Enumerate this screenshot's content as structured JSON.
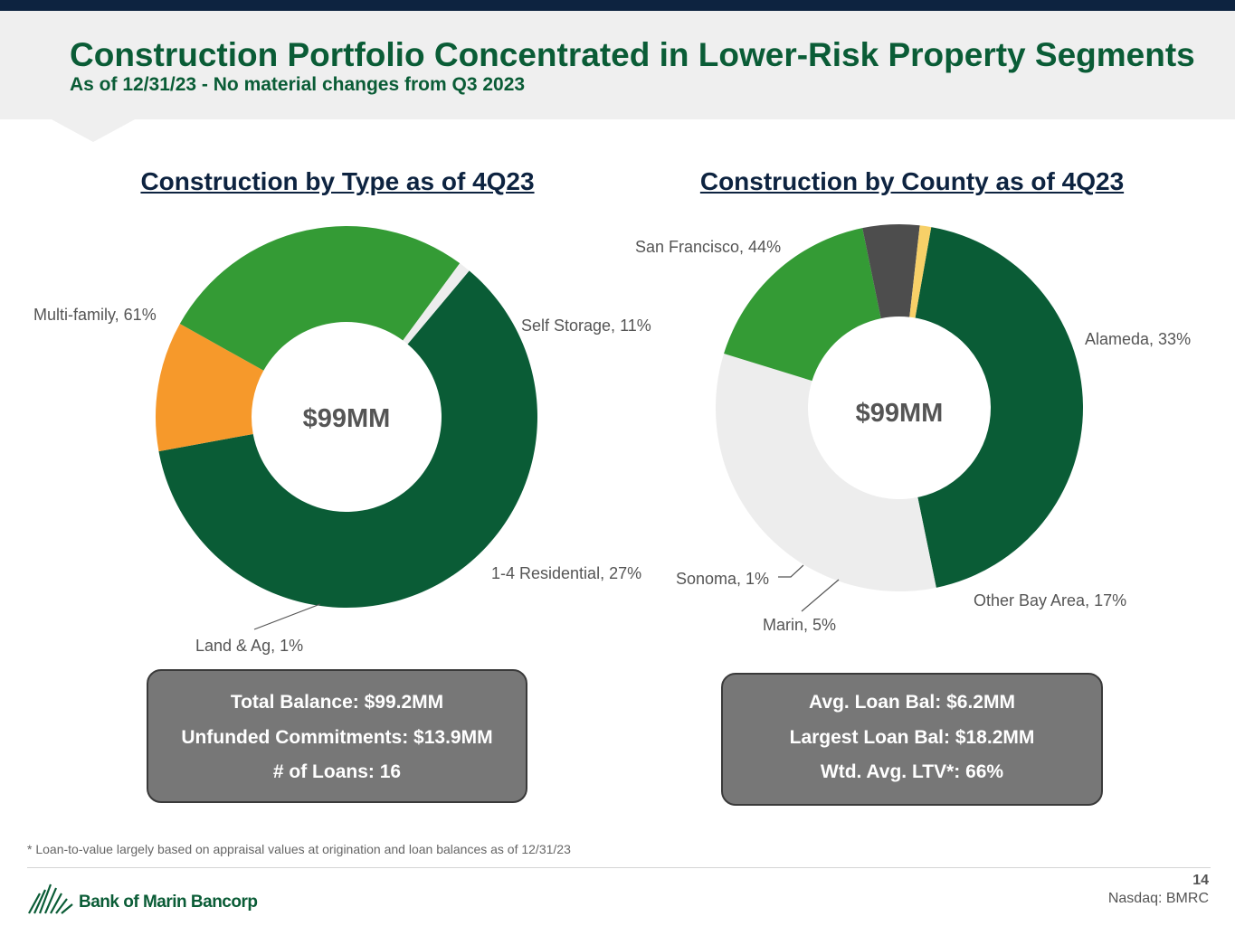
{
  "header": {
    "title": "Construction Portfolio Concentrated in Lower-Risk Property Segments",
    "subtitle": "As of 12/31/23  - No material changes from Q3 2023"
  },
  "chart_data": [
    {
      "type": "pie",
      "title": "Construction by Type as of 4Q23",
      "center_label": "$99MM",
      "slices": [
        {
          "label": "Multi-family, 61%",
          "value": 61,
          "color": "#0a5c36"
        },
        {
          "label": "Self Storage, 11%",
          "value": 11,
          "color": "#f6992b"
        },
        {
          "label": "1-4 Residential, 27%",
          "value": 27,
          "color": "#349b35"
        },
        {
          "label": "Land & Ag, 1%",
          "value": 1,
          "color": "#ededed"
        }
      ]
    },
    {
      "type": "pie",
      "title": "Construction by County as of 4Q23",
      "center_label": "$99MM",
      "slices": [
        {
          "label": "San Francisco, 44%",
          "value": 44,
          "color": "#0a5c36"
        },
        {
          "label": "Alameda, 33%",
          "value": 33,
          "color": "#ededed"
        },
        {
          "label": "Other Bay Area, 17%",
          "value": 17,
          "color": "#349b35"
        },
        {
          "label": "Marin, 5%",
          "value": 5,
          "color": "#4d4d4d"
        },
        {
          "label": "Sonoma, 1%",
          "value": 1,
          "color": "#f7d068"
        }
      ]
    }
  ],
  "boxes": {
    "left": {
      "line1": "Total Balance: $99.2MM",
      "line2": "Unfunded Commitments: $13.9MM",
      "line3": "# of Loans: 16"
    },
    "right": {
      "line1": "Avg. Loan Bal: $6.2MM",
      "line2": "Largest Loan Bal: $18.2MM",
      "line3": "Wtd. Avg. LTV*: 66%"
    }
  },
  "footer": {
    "footnote": "* Loan-to-value largely based on appraisal values at origination and loan balances as of 12/31/23",
    "logo_text": "Bank of Marin Bancorp",
    "page_number": "14",
    "ticker": "Nasdaq: BMRC"
  }
}
